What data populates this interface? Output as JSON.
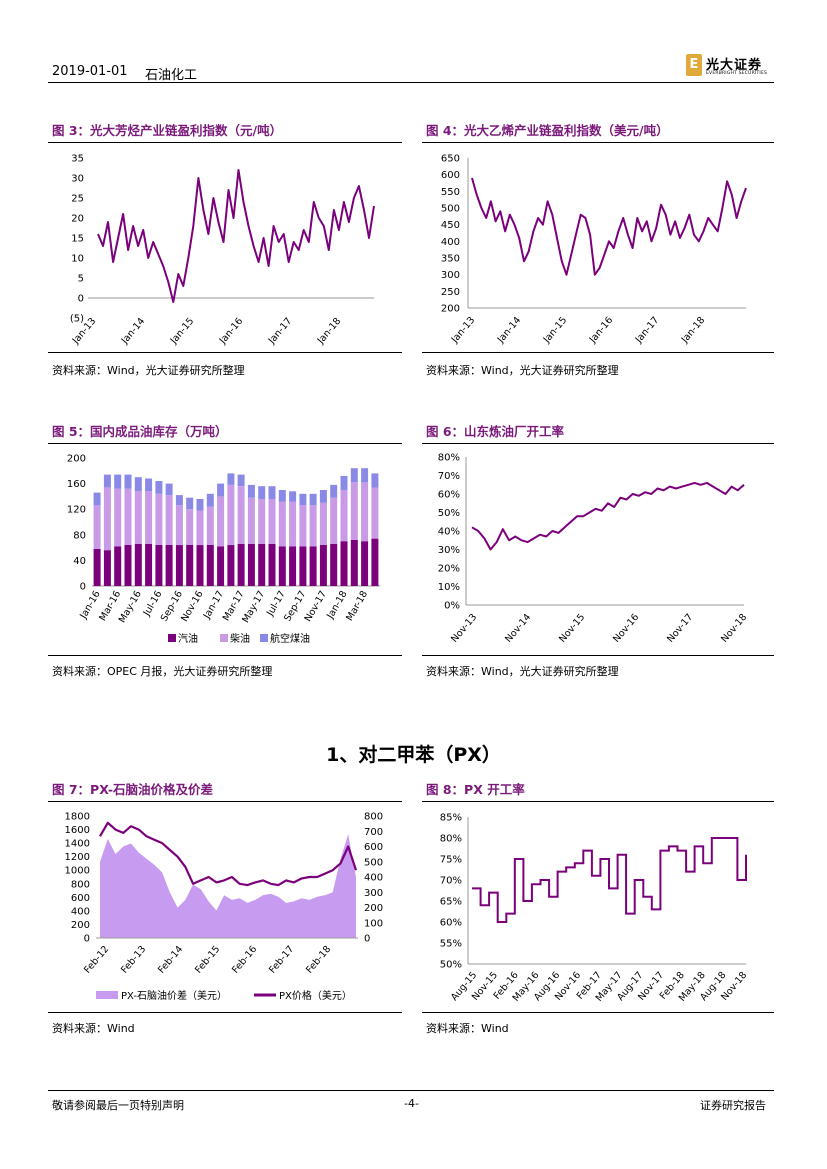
{
  "header": {
    "date": "2019-01-01",
    "sector": "石油化工",
    "logo_cn": "光大证券",
    "logo_en": "EVERBRIGHT SECURITIES"
  },
  "section": {
    "title": "1、对二甲苯（PX）"
  },
  "footer": {
    "disclaimer": "敬请参阅最后一页特别声明",
    "page": "-4-",
    "report_type": "证券研究报告"
  },
  "figures": [
    {
      "title": "图 3：光大芳烃产业链盈利指数（元/吨）",
      "source": "资料来源：Wind，光大证券研究所整理"
    },
    {
      "title": "图 4：光大乙烯产业链盈利指数（美元/吨）",
      "source": "资料来源：Wind，光大证券研究所整理"
    },
    {
      "title": "图 5：国内成品油库存（万吨）",
      "source": "资料来源：OPEC 月报，光大证券研究所整理"
    },
    {
      "title": "图 6：山东炼油厂开工率",
      "source": "资料来源：Wind，光大证券研究所整理"
    },
    {
      "title": "图 7：PX-石脑油价格及价差",
      "source": "资料来源：Wind"
    },
    {
      "title": "图 8：PX 开工率",
      "source": "资料来源：Wind"
    }
  ],
  "colors": {
    "purple": "#7b007b",
    "bar_light": "#c99ae6",
    "bar_blue": "#8a8ae6",
    "area": "#c79bf0",
    "title": "#7b1a7b"
  },
  "chart_data": [
    {
      "type": "line",
      "x_ticks": [
        "Jan-13",
        "Jan-14",
        "Jan-15",
        "Jan-16",
        "Jan-17",
        "Jan-18"
      ],
      "y_ticks": [
        "35",
        "30",
        "25",
        "20",
        "15",
        "10",
        "5",
        "0",
        "(5)"
      ],
      "ylim": [
        -5,
        35
      ],
      "series": [
        {
          "values": [
            16,
            13,
            19,
            9,
            15,
            21,
            12,
            18,
            13,
            17,
            10,
            14,
            11,
            8,
            4,
            -1,
            6,
            3,
            10,
            18,
            30,
            22,
            16,
            25,
            19,
            14,
            27,
            20,
            32,
            24,
            18,
            13,
            9,
            15,
            8,
            18,
            14,
            16,
            9,
            14,
            12,
            17,
            14,
            24,
            20,
            18,
            12,
            22,
            17,
            24,
            19,
            25,
            28,
            22,
            15,
            23
          ]
        }
      ]
    },
    {
      "type": "line",
      "x_ticks": [
        "Jan-13",
        "Jan-14",
        "Jan-15",
        "Jan-16",
        "Jan-17",
        "Jan-18"
      ],
      "y_ticks": [
        "650",
        "600",
        "550",
        "500",
        "450",
        "400",
        "350",
        "300",
        "250",
        "200"
      ],
      "ylim": [
        200,
        650
      ],
      "series": [
        {
          "values": [
            590,
            540,
            500,
            470,
            520,
            460,
            490,
            430,
            480,
            450,
            410,
            340,
            370,
            430,
            470,
            450,
            520,
            480,
            410,
            340,
            300,
            360,
            420,
            480,
            470,
            420,
            300,
            320,
            360,
            400,
            380,
            430,
            470,
            420,
            380,
            470,
            430,
            460,
            400,
            440,
            510,
            480,
            420,
            460,
            410,
            440,
            480,
            420,
            400,
            430,
            470,
            450,
            430,
            500,
            580,
            540,
            470,
            520,
            560
          ]
        }
      ]
    },
    {
      "type": "bar",
      "categories": [
        "Jan-16",
        "",
        "Mar-16",
        "",
        "May-16",
        "",
        "Jul-16",
        "",
        "Sep-16",
        "",
        "Nov-16",
        "",
        "Jan-17",
        "",
        "Mar-17",
        "",
        "May-17",
        "",
        "Jul-17",
        "",
        "Sep-17",
        "",
        "Nov-17",
        "",
        "Jan-18",
        "",
        "Mar-18",
        ""
      ],
      "x_tick_labels": [
        "Jan-16",
        "Mar-16",
        "May-16",
        "Jul-16",
        "Sep-16",
        "Nov-16",
        "Jan-17",
        "Mar-17",
        "May-17",
        "Jul-17",
        "Sep-17",
        "Nov-17",
        "Jan-18",
        "Mar-18"
      ],
      "y_ticks": [
        "200",
        "160",
        "120",
        "80",
        "40",
        "0"
      ],
      "ylim": [
        0,
        200
      ],
      "legend": [
        "汽油",
        "柴油",
        "航空煤油"
      ],
      "series": [
        {
          "name": "汽油",
          "values": [
            58,
            56,
            62,
            64,
            66,
            66,
            64,
            64,
            64,
            64,
            64,
            64,
            62,
            64,
            66,
            66,
            66,
            66,
            62,
            62,
            62,
            62,
            64,
            66,
            70,
            72,
            70,
            74
          ]
        },
        {
          "name": "柴油",
          "values": [
            68,
            98,
            90,
            88,
            82,
            82,
            80,
            78,
            62,
            56,
            54,
            60,
            78,
            94,
            90,
            72,
            70,
            70,
            70,
            70,
            64,
            64,
            66,
            72,
            80,
            90,
            92,
            80
          ]
        },
        {
          "name": "航空煤油",
          "values": [
            20,
            20,
            22,
            22,
            22,
            20,
            20,
            18,
            16,
            18,
            18,
            20,
            20,
            18,
            18,
            20,
            20,
            20,
            18,
            16,
            18,
            18,
            20,
            20,
            22,
            22,
            22,
            22
          ]
        }
      ]
    },
    {
      "type": "line",
      "x_ticks": [
        "Nov-13",
        "Nov-14",
        "Nov-15",
        "Nov-16",
        "Nov-17",
        "Nov-18"
      ],
      "y_ticks": [
        "80%",
        "70%",
        "60%",
        "50%",
        "40%",
        "30%",
        "20%",
        "10%",
        "0%"
      ],
      "ylim": [
        0,
        80
      ],
      "series": [
        {
          "values": [
            42,
            40,
            36,
            30,
            34,
            41,
            35,
            37,
            35,
            34,
            36,
            38,
            37,
            40,
            39,
            42,
            45,
            48,
            48,
            50,
            52,
            51,
            55,
            53,
            58,
            57,
            60,
            59,
            61,
            60,
            63,
            62,
            64,
            63,
            64,
            65,
            66,
            65,
            66,
            64,
            62,
            60,
            64,
            62,
            65
          ]
        }
      ]
    },
    {
      "type": "area",
      "x_ticks": [
        "Feb-12",
        "Feb-13",
        "Feb-14",
        "Feb-15",
        "Feb-16",
        "Feb-17",
        "Feb-18"
      ],
      "y_ticks_left": [
        "1800",
        "1600",
        "1400",
        "1200",
        "1000",
        "800",
        "600",
        "400",
        "200",
        "0"
      ],
      "y_ticks_right": [
        "800",
        "700",
        "600",
        "500",
        "400",
        "300",
        "200",
        "100",
        "0"
      ],
      "ylim_left": [
        0,
        1800
      ],
      "ylim_right": [
        0,
        800
      ],
      "legend": [
        "PX-石脑油价差（美元）",
        "PX价格（美元）"
      ],
      "series": [
        {
          "name": "PX-石脑油价差（美元）",
          "axis": "right",
          "values": [
            500,
            650,
            550,
            600,
            620,
            560,
            520,
            480,
            430,
            300,
            200,
            250,
            350,
            320,
            240,
            180,
            280,
            250,
            260,
            230,
            250,
            280,
            290,
            270,
            230,
            240,
            260,
            250,
            270,
            280,
            300,
            520,
            680,
            400
          ]
        },
        {
          "name": "PX价格（美元）",
          "axis": "left",
          "values": [
            1500,
            1700,
            1600,
            1550,
            1650,
            1600,
            1500,
            1450,
            1400,
            1300,
            1200,
            1050,
            800,
            850,
            900,
            820,
            850,
            900,
            800,
            780,
            820,
            850,
            800,
            780,
            850,
            820,
            880,
            900,
            900,
            950,
            1000,
            1100,
            1350,
            1000
          ]
        }
      ]
    },
    {
      "type": "line",
      "x_ticks": [
        "Aug-15",
        "Nov-15",
        "Feb-16",
        "May-16",
        "Aug-16",
        "Nov-16",
        "Feb-17",
        "May-17",
        "Aug-17",
        "Nov-17",
        "Feb-18",
        "May-18",
        "Aug-18",
        "Nov-18"
      ],
      "y_ticks": [
        "85%",
        "80%",
        "75%",
        "70%",
        "65%",
        "60%",
        "55%",
        "50%"
      ],
      "ylim": [
        50,
        85
      ],
      "series": [
        {
          "values": [
            68,
            64,
            67,
            60,
            62,
            75,
            65,
            69,
            70,
            66,
            72,
            73,
            74,
            77,
            71,
            75,
            68,
            76,
            62,
            70,
            66,
            63,
            77,
            78,
            77,
            72,
            78,
            74,
            80,
            80,
            80,
            70,
            76
          ]
        }
      ]
    }
  ]
}
